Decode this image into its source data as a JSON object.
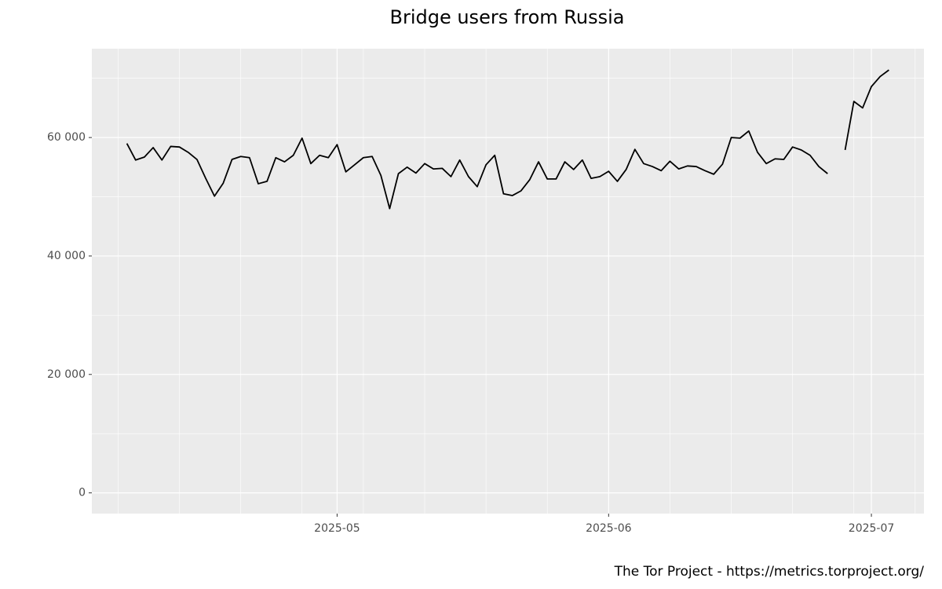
{
  "chart_data": {
    "type": "line",
    "title": "Bridge users from Russia",
    "caption": "The Tor Project - https://metrics.torproject.org/",
    "color": "#000000",
    "x": [
      "2025-04-07",
      "2025-04-08",
      "2025-04-09",
      "2025-04-10",
      "2025-04-11",
      "2025-04-12",
      "2025-04-13",
      "2025-04-14",
      "2025-04-15",
      "2025-04-16",
      "2025-04-17",
      "2025-04-18",
      "2025-04-19",
      "2025-04-20",
      "2025-04-21",
      "2025-04-22",
      "2025-04-23",
      "2025-04-24",
      "2025-04-25",
      "2025-04-26",
      "2025-04-27",
      "2025-04-28",
      "2025-04-29",
      "2025-04-30",
      "2025-05-01",
      "2025-05-02",
      "2025-05-03",
      "2025-05-04",
      "2025-05-05",
      "2025-05-06",
      "2025-05-07",
      "2025-05-08",
      "2025-05-09",
      "2025-05-10",
      "2025-05-11",
      "2025-05-12",
      "2025-05-13",
      "2025-05-14",
      "2025-05-15",
      "2025-05-16",
      "2025-05-17",
      "2025-05-18",
      "2025-05-19",
      "2025-05-20",
      "2025-05-21",
      "2025-05-22",
      "2025-05-23",
      "2025-05-24",
      "2025-05-25",
      "2025-05-26",
      "2025-05-27",
      "2025-05-28",
      "2025-05-29",
      "2025-05-30",
      "2025-05-31",
      "2025-06-01",
      "2025-06-02",
      "2025-06-03",
      "2025-06-04",
      "2025-06-05",
      "2025-06-06",
      "2025-06-07",
      "2025-06-08",
      "2025-06-09",
      "2025-06-10",
      "2025-06-11",
      "2025-06-12",
      "2025-06-13",
      "2025-06-14",
      "2025-06-15",
      "2025-06-16",
      "2025-06-17",
      "2025-06-18",
      "2025-06-19",
      "2025-06-20",
      "2025-06-21",
      "2025-06-22",
      "2025-06-23",
      "2025-06-24",
      "2025-06-25",
      "2025-06-26",
      "2025-06-27",
      "2025-06-28",
      "2025-06-29",
      "2025-06-30",
      "2025-07-01",
      "2025-07-02",
      "2025-07-03"
    ],
    "values": [
      59000,
      56200,
      56700,
      58300,
      56200,
      58500,
      58400,
      57500,
      56300,
      53100,
      50100,
      52300,
      56300,
      56800,
      56600,
      52200,
      52600,
      56600,
      55900,
      57000,
      59900,
      55600,
      57000,
      56600,
      58800,
      54200,
      55400,
      56600,
      56800,
      53600,
      48000,
      53900,
      55000,
      54000,
      55600,
      54700,
      54800,
      53400,
      56200,
      53400,
      51700,
      55400,
      57000,
      50500,
      50200,
      51000,
      52900,
      55900,
      53000,
      53000,
      55900,
      54600,
      56200,
      53100,
      53400,
      54300,
      52600,
      54600,
      58000,
      55600,
      55100,
      54400,
      56000,
      54700,
      55200,
      55100,
      54400,
      53800,
      55500,
      60000,
      59900,
      61100,
      57500,
      55600,
      56400,
      56300,
      58400,
      57900,
      57000,
      55100,
      53900,
      null,
      57900,
      66100,
      65000,
      68600,
      70300,
      71400
    ],
    "xlim": [
      "2025-04-03",
      "2025-07-07"
    ],
    "xticks": [
      "2025-05",
      "2025-06",
      "2025-07"
    ],
    "xminorticks": [
      "2025-04-06",
      "2025-04-13",
      "2025-04-20",
      "2025-04-27",
      "2025-05-04",
      "2025-05-11",
      "2025-05-18",
      "2025-05-25",
      "2025-06-08",
      "2025-06-15",
      "2025-06-22",
      "2025-06-29",
      "2025-07-06"
    ],
    "ylim": [
      -3500,
      75000
    ],
    "yticks": [
      0,
      {
        "value": 20000,
        "label": "20 000"
      },
      {
        "value": 40000,
        "label": "40 000"
      },
      {
        "value": 60000,
        "label": "60 000"
      }
    ],
    "yminorticks": [
      10000,
      30000,
      50000,
      70000
    ],
    "grid": true
  }
}
